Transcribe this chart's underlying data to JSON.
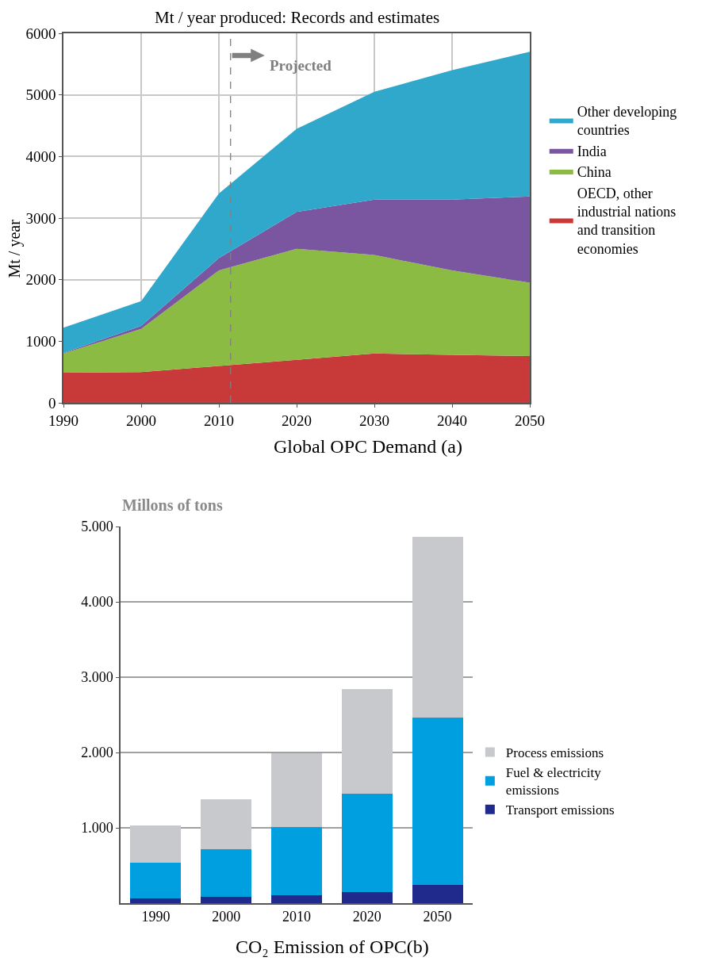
{
  "chart_data": [
    {
      "type": "area",
      "stacked": true,
      "title": "Mt / year produced: Records and estimates",
      "xlabel": "Global OPC Demand (a)",
      "ylabel": "Mt / year",
      "x": [
        1990,
        2000,
        2010,
        2020,
        2030,
        2040,
        2050
      ],
      "series": [
        {
          "name": "OECD, other industrial nations and transition economies",
          "color": "#c83a3a",
          "values": [
            490,
            500,
            600,
            700,
            800,
            780,
            760
          ]
        },
        {
          "name": "China",
          "color": "#8cbb44",
          "values": [
            310,
            700,
            1550,
            1800,
            1600,
            1370,
            1190
          ]
        },
        {
          "name": "India",
          "color": "#7a55a0",
          "values": [
            10,
            50,
            200,
            600,
            900,
            1150,
            1400
          ]
        },
        {
          "name": "Other developing countries",
          "color": "#2fa8cc",
          "values": [
            410,
            400,
            1050,
            1350,
            1750,
            2100,
            2350
          ]
        }
      ],
      "xlim": [
        1990,
        2050
      ],
      "xticks": [
        1990,
        2000,
        2010,
        2020,
        2030,
        2040,
        2050
      ],
      "ylim": [
        0,
        6000
      ],
      "yticks": [
        0,
        1000,
        2000,
        3000,
        4000,
        5000,
        6000
      ],
      "ref_lines": [
        {
          "axis": "x",
          "value": 2011.5,
          "label": "Projected",
          "color": "#808080",
          "line_style": "dashed"
        }
      ],
      "grid": true,
      "legend": "right",
      "marker": "none"
    },
    {
      "type": "bar",
      "stacked": true,
      "title": "Millons of tons",
      "xlabel": "CO₂ Emission of OPC(b)",
      "categories": [
        "1990",
        "2000",
        "2010",
        "2020",
        "2050"
      ],
      "series": [
        {
          "name": "Transport emissions",
          "color": "#1f2a8c",
          "values": [
            60,
            80,
            110,
            150,
            240
          ]
        },
        {
          "name": "Fuel & electricity emissions",
          "color": "#009fe0",
          "values": [
            480,
            640,
            900,
            1300,
            2220
          ]
        },
        {
          "name": "Process emissions",
          "color": "#c8c9cd",
          "values": [
            490,
            660,
            980,
            1390,
            2400
          ]
        }
      ],
      "ylim": [
        0,
        5000
      ],
      "yticks": [
        {
          "value": 1000,
          "label": "1.000"
        },
        {
          "value": 2000,
          "label": "2.000"
        },
        {
          "value": 3000,
          "label": "3.000"
        },
        {
          "value": 4000,
          "label": "4.000"
        },
        {
          "value": 5000,
          "label": "5.000"
        }
      ],
      "grid": "y",
      "legend": "right"
    }
  ]
}
